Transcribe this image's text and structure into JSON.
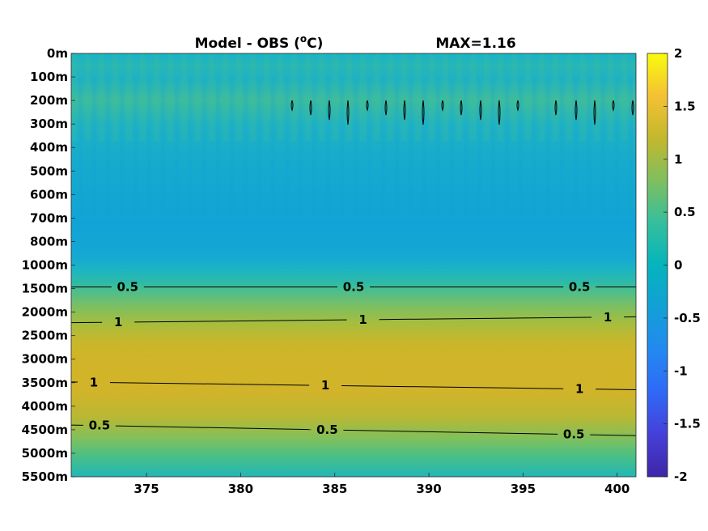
{
  "chart_data": {
    "type": "heatmap",
    "title": "Model - OBS (°C)",
    "title_main": "Model - OBS (",
    "title_sup": "o",
    "title_end": "C)",
    "max_label": "MAX=1.16",
    "xlim": [
      371,
      401
    ],
    "x_ticks": [
      375,
      380,
      385,
      390,
      395,
      400
    ],
    "y_ticks": [
      "0m",
      "100m",
      "200m",
      "300m",
      "400m",
      "500m",
      "600m",
      "700m",
      "800m",
      "1000m",
      "1500m",
      "2000m",
      "2500m",
      "3000m",
      "3500m",
      "4000m",
      "4500m",
      "5000m",
      "5500m"
    ],
    "colorbar": {
      "limits": [
        -2,
        2
      ],
      "ticks": [
        2,
        1.5,
        1,
        0.5,
        0,
        -0.5,
        -1,
        -1.5,
        -2
      ],
      "tick_labels": [
        "2",
        "1.5",
        "1",
        "0.5",
        "0",
        "-0.5",
        "-1",
        "-1.5",
        "-2"
      ],
      "colormap": "parula"
    },
    "depth_profile": [
      {
        "depth": "0m",
        "value": -0.1
      },
      {
        "depth": "100m",
        "value": -0.15
      },
      {
        "depth": "200m",
        "value": -0.05
      },
      {
        "depth": "300m",
        "value": -0.1
      },
      {
        "depth": "400m",
        "value": -0.15
      },
      {
        "depth": "500m",
        "value": -0.2
      },
      {
        "depth": "600m",
        "value": -0.25
      },
      {
        "depth": "700m",
        "value": -0.25
      },
      {
        "depth": "800m",
        "value": -0.2
      },
      {
        "depth": "1000m",
        "value": 0.0
      },
      {
        "depth": "1500m",
        "value": 0.5
      },
      {
        "depth": "2000m",
        "value": 0.9
      },
      {
        "depth": "2500m",
        "value": 1.08
      },
      {
        "depth": "3000m",
        "value": 1.12
      },
      {
        "depth": "3500m",
        "value": 1.0
      },
      {
        "depth": "4000m",
        "value": 0.75
      },
      {
        "depth": "4500m",
        "value": 0.5
      },
      {
        "depth": "5000m",
        "value": 0.3
      },
      {
        "depth": "5500m",
        "value": 0.05
      }
    ],
    "contours": [
      {
        "level": 0.5,
        "label": "0.5",
        "depth_left": 9.93,
        "depth_right": 9.93
      },
      {
        "level": 1,
        "label": "1",
        "depth_left": 11.45,
        "depth_right": 11.2
      },
      {
        "level": 1,
        "label": "1",
        "depth_left": 13.97,
        "depth_right": 14.3
      },
      {
        "level": 0.5,
        "label": "0.5",
        "depth_left": 15.8,
        "depth_right": 16.25
      }
    ],
    "contour_label_x": [
      [
        374,
        386,
        398
      ],
      [
        373.5,
        386.5,
        399.5
      ],
      [
        372.2,
        384.5,
        398
      ],
      [
        372.5,
        384.6,
        397.7
      ]
    ]
  }
}
